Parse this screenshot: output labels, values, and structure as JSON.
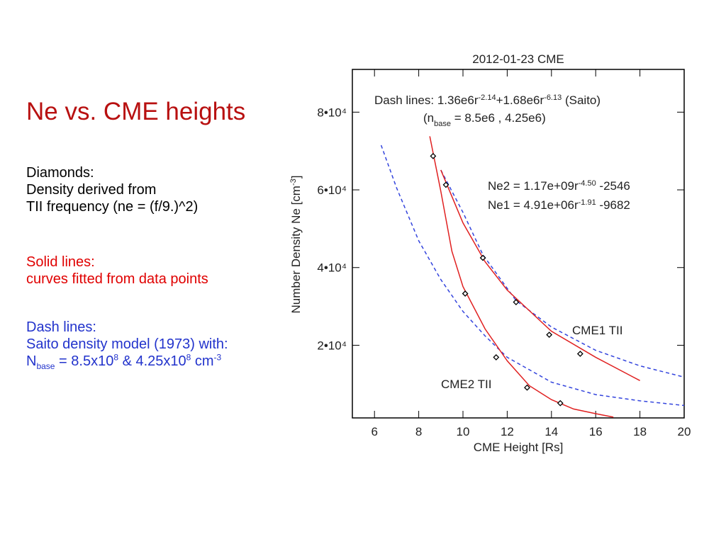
{
  "slide": {
    "title": "Ne vs. CME heights",
    "block1": [
      "Diamonds:",
      "Density derived from",
      "TII  frequency  (ne = (f/9.)^2)"
    ],
    "block2": [
      "Solid lines:",
      "curves fitted from data points"
    ],
    "block3": [
      "Dash lines:",
      "Saito density  model (1973) with:"
    ],
    "nbase": {
      "n": "N",
      "sub": "base",
      "a": " = 8.5x10",
      "e1": "8",
      "b": " & 4.25x10",
      "e2": "8",
      "c": " cm",
      "e3": "-3"
    }
  },
  "chart_data": {
    "type": "scatter",
    "title": "2012-01-23 CME",
    "x_label": "CME Height [Rs]",
    "y_label": {
      "text": "Number Density Ne [cm",
      "sup": "-3",
      "end": "]"
    },
    "annotation_saito": {
      "a": "Dash lines: 1.36e6r",
      "e1": "-2.14",
      "b": "+1.68e6r",
      "e2": "-6.13",
      "c": " (Saito)"
    },
    "annotation_nbase": {
      "a": "(n",
      "sub": "base",
      "b": " = 8.5e6 , 4.25e6)"
    },
    "annotation_ne2": {
      "a": "Ne2 = 1.17e+09r",
      "e": "-4.50",
      "b": " -2546"
    },
    "annotation_ne1": {
      "a": "Ne1 = 4.91e+06r",
      "e": "-1.91",
      "b": " -9682"
    },
    "xlim": [
      5,
      20
    ],
    "ylim": [
      1300,
      91000
    ],
    "xticks": [
      6,
      8,
      10,
      12,
      14,
      16,
      18,
      20
    ],
    "yticks": [
      {
        "value": 20000,
        "label": "2•10⁴"
      },
      {
        "value": 40000,
        "label": "4•10⁴"
      },
      {
        "value": 60000,
        "label": "6•10⁴"
      },
      {
        "value": 80000,
        "label": "8•10⁴"
      }
    ],
    "series": [
      {
        "name": "CME1 TII",
        "color": "#000000",
        "x": [
          9.23,
          10.9,
          12.4,
          13.9,
          15.3
        ],
        "values": [
          61300,
          42500,
          31100,
          22700,
          17800
        ]
      },
      {
        "name": "CME2 TII",
        "color": "#000000",
        "x": [
          8.65,
          10.1,
          11.5,
          12.9,
          14.4
        ],
        "values": [
          68700,
          33300,
          16900,
          9100,
          5100
        ]
      }
    ],
    "fit_lines": [
      {
        "color": "#e02020",
        "x": [
          9,
          10,
          11,
          12,
          14,
          16,
          18
        ],
        "values": [
          65100,
          51500,
          41500,
          34200,
          23600,
          16900,
          10900
        ]
      },
      {
        "color": "#e02020",
        "x": [
          8.5,
          9,
          9.5,
          10,
          11,
          12,
          13,
          14,
          15,
          16,
          16.8
        ],
        "values": [
          73800,
          59600,
          44200,
          35100,
          24200,
          16000,
          9600,
          6000,
          3600,
          2400,
          1500
        ]
      }
    ],
    "model_lines": [
      {
        "color": "#3344dd",
        "x": [
          9,
          10,
          10.9,
          12.4,
          14,
          16,
          18,
          20
        ],
        "values": [
          65100,
          54200,
          43300,
          31500,
          24700,
          18700,
          14700,
          11800
        ]
      },
      {
        "color": "#3344dd",
        "x": [
          6.3,
          7,
          8,
          9,
          10,
          11,
          12,
          14,
          16,
          18,
          20
        ],
        "values": [
          71500,
          60500,
          46900,
          36900,
          28700,
          22400,
          16900,
          10500,
          7300,
          5700,
          4500
        ]
      }
    ]
  }
}
